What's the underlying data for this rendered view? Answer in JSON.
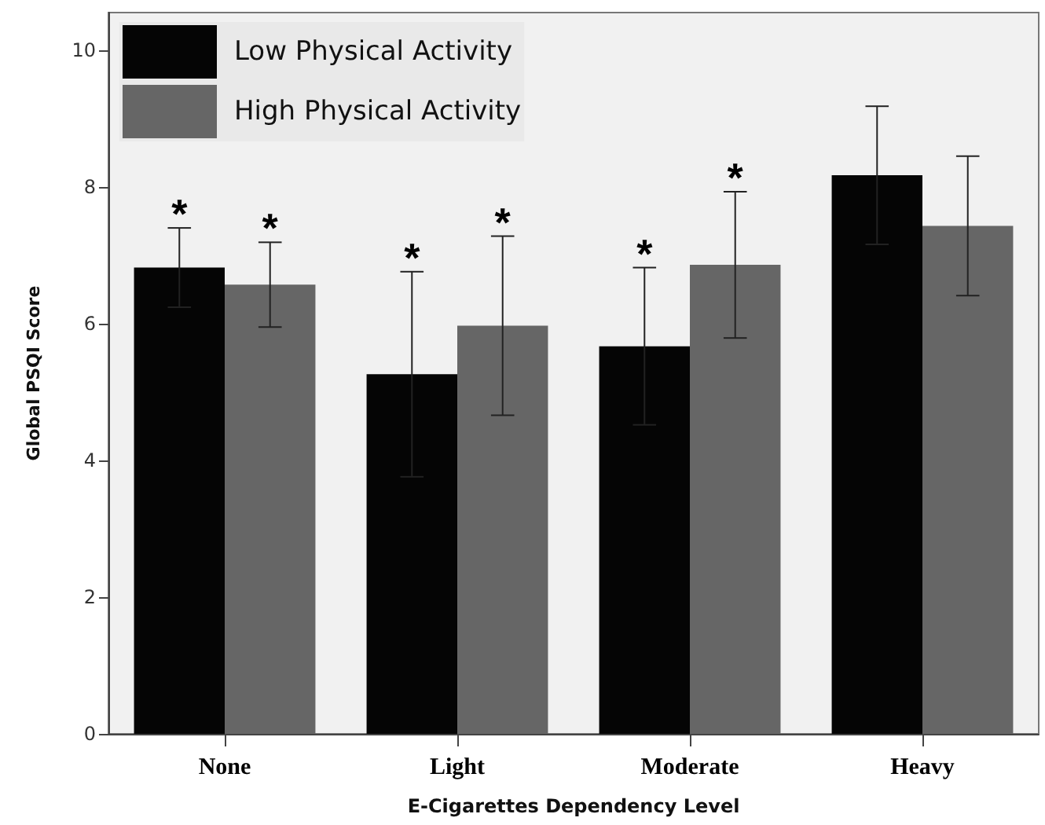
{
  "chart_data": {
    "type": "bar",
    "xlabel": "E-Cigarettes Dependency Level",
    "ylabel": "Global PSQI Score",
    "categories": [
      "None",
      "Light",
      "Moderate",
      "Heavy"
    ],
    "series": [
      {
        "name": "Low Physical Activity",
        "color": "#050505",
        "values": [
          6.82,
          5.26,
          5.67,
          8.17
        ],
        "errors": [
          0.58,
          1.5,
          1.15,
          1.01
        ]
      },
      {
        "name": "High Physical Activity",
        "color": "#666666",
        "values": [
          6.57,
          5.97,
          6.86,
          7.43
        ],
        "errors": [
          0.62,
          1.31,
          1.07,
          1.02
        ]
      }
    ],
    "ylim": [
      0,
      10.55
    ],
    "yticks": [
      0,
      2,
      4,
      6,
      8,
      10
    ],
    "grid": false,
    "legend": "top left",
    "annotations": [
      "*",
      "*",
      "*",
      "*",
      "*",
      "*"
    ]
  }
}
